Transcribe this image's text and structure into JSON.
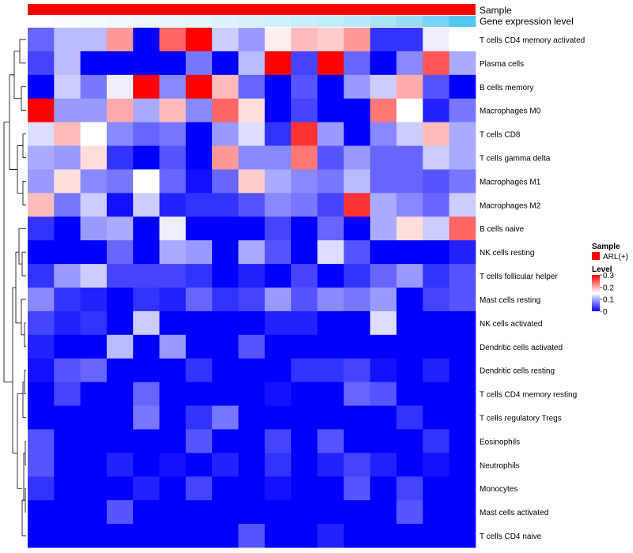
{
  "chart_data": {
    "type": "heatmap",
    "title": "",
    "annotation_tracks": [
      {
        "name": "Sample",
        "values_label": "ARL(+)",
        "color": "#ff0000"
      },
      {
        "name": "Gene expression level",
        "gradient": [
          "#ffffff",
          "#55c8f0"
        ]
      }
    ],
    "rows": [
      "T cells CD4 memory activated",
      "Plasma cells",
      "B cells memory",
      "Macrophages M0",
      "T cells CD8",
      "T cells gamma delta",
      "Macrophages M1",
      "Macrophages M2",
      "B cells naive",
      "NK cells resting",
      "T cells follicular helper",
      "Mast cells resting",
      "NK cells activated",
      "Dendritic cells activated",
      "Dendritic cells resting",
      "T cells CD4 memory resting",
      "T cells regulatory  Tregs",
      "Eosinophils",
      "Neutrophils",
      "Monocytes",
      "Mast cells activated",
      "T cells CD4 naive"
    ],
    "n_columns": 17,
    "values": [
      [
        0.06,
        0.11,
        0.11,
        0.21,
        0.0,
        0.24,
        0.31,
        0.12,
        0.09,
        0.16,
        0.19,
        0.18,
        0.21,
        0.03,
        0.03,
        0.14,
        0.15
      ],
      [
        0.04,
        0.11,
        0.0,
        0.0,
        0.0,
        0.0,
        0.07,
        0.0,
        0.11,
        0.31,
        0.04,
        0.31,
        0.06,
        0.0,
        0.08,
        0.25,
        0.1
      ],
      [
        0.0,
        0.12,
        0.07,
        0.14,
        0.31,
        0.08,
        0.31,
        0.19,
        0.06,
        0.0,
        0.05,
        0.0,
        0.09,
        0.12,
        0.2,
        0.05,
        0.0
      ],
      [
        0.3,
        0.09,
        0.09,
        0.2,
        0.1,
        0.19,
        0.08,
        0.24,
        0.17,
        0.0,
        0.04,
        0.0,
        0.0,
        0.23,
        0.15,
        0.02,
        0.07
      ],
      [
        0.13,
        0.19,
        0.15,
        0.08,
        0.06,
        0.07,
        0.0,
        0.09,
        0.13,
        0.03,
        0.27,
        0.09,
        0.0,
        0.08,
        0.12,
        0.19,
        0.1
      ],
      [
        0.1,
        0.09,
        0.17,
        0.03,
        0.0,
        0.05,
        0.0,
        0.21,
        0.08,
        0.08,
        0.23,
        0.05,
        0.09,
        0.06,
        0.06,
        0.12,
        0.1
      ],
      [
        0.09,
        0.17,
        0.08,
        0.07,
        0.15,
        0.06,
        0.01,
        0.06,
        0.18,
        0.1,
        0.08,
        0.07,
        0.11,
        0.06,
        0.06,
        0.05,
        0.07
      ],
      [
        0.19,
        0.07,
        0.12,
        0.01,
        0.12,
        0.02,
        0.03,
        0.03,
        0.05,
        0.08,
        0.07,
        0.04,
        0.27,
        0.1,
        0.08,
        0.06,
        0.12
      ],
      [
        0.03,
        0.0,
        0.09,
        0.1,
        0.0,
        0.14,
        0.0,
        0.0,
        0.0,
        0.04,
        0.0,
        0.06,
        0.0,
        0.1,
        0.17,
        0.12,
        0.24
      ],
      [
        0.0,
        0.0,
        0.0,
        0.06,
        0.0,
        0.1,
        0.09,
        0.0,
        0.1,
        0.05,
        0.0,
        0.13,
        0.05,
        0.0,
        0.0,
        0.0,
        0.02
      ],
      [
        0.03,
        0.09,
        0.12,
        0.04,
        0.04,
        0.04,
        0.03,
        0.0,
        0.02,
        0.0,
        0.04,
        0.0,
        0.03,
        0.06,
        0.09,
        0.03,
        0.05
      ],
      [
        0.08,
        0.03,
        0.02,
        0.0,
        0.03,
        0.02,
        0.06,
        0.03,
        0.04,
        0.09,
        0.05,
        0.08,
        0.07,
        0.09,
        0.0,
        0.04,
        0.05
      ],
      [
        0.04,
        0.02,
        0.03,
        0.0,
        0.12,
        0.0,
        0.0,
        0.0,
        0.0,
        0.02,
        0.02,
        0.0,
        0.0,
        0.13,
        0.0,
        0.0,
        0.0
      ],
      [
        0.02,
        0.0,
        0.0,
        0.11,
        0.0,
        0.09,
        0.0,
        0.0,
        0.05,
        0.0,
        0.0,
        0.0,
        0.0,
        0.0,
        0.0,
        0.0,
        0.0
      ],
      [
        0.01,
        0.05,
        0.06,
        0.0,
        0.0,
        0.0,
        0.03,
        0.0,
        0.0,
        0.0,
        0.03,
        0.03,
        0.04,
        0.01,
        0.0,
        0.02,
        0.0
      ],
      [
        0.0,
        0.04,
        0.0,
        0.0,
        0.06,
        0.0,
        0.0,
        0.0,
        0.0,
        0.01,
        0.0,
        0.0,
        0.06,
        0.05,
        0.0,
        0.0,
        0.0
      ],
      [
        0.0,
        0.0,
        0.0,
        0.0,
        0.07,
        0.0,
        0.03,
        0.07,
        0.0,
        0.0,
        0.0,
        0.0,
        0.0,
        0.0,
        0.03,
        0.0,
        0.0
      ],
      [
        0.05,
        0.0,
        0.0,
        0.0,
        0.0,
        0.0,
        0.05,
        0.0,
        0.0,
        0.04,
        0.0,
        0.05,
        0.0,
        0.0,
        0.0,
        0.03,
        0.0
      ],
      [
        0.05,
        0.0,
        0.0,
        0.02,
        0.0,
        0.01,
        0.0,
        0.02,
        0.0,
        0.03,
        0.0,
        0.02,
        0.04,
        0.02,
        0.0,
        0.01,
        0.0
      ],
      [
        0.03,
        0.0,
        0.0,
        0.0,
        0.02,
        0.0,
        0.04,
        0.0,
        0.0,
        0.01,
        0.0,
        0.0,
        0.05,
        0.0,
        0.04,
        0.0,
        0.0
      ],
      [
        0.0,
        0.0,
        0.0,
        0.05,
        0.0,
        0.0,
        0.0,
        0.0,
        0.0,
        0.0,
        0.0,
        0.0,
        0.0,
        0.0,
        0.05,
        0.0,
        0.0
      ],
      [
        0.0,
        0.0,
        0.0,
        0.0,
        0.0,
        0.0,
        0.0,
        0.0,
        0.05,
        0.0,
        0.0,
        0.02,
        0.0,
        0.0,
        0.0,
        0.0,
        0.0
      ]
    ],
    "expression_level_values": [
      0.0,
      0.03,
      0.06,
      0.09,
      0.12,
      0.15,
      0.18,
      0.22,
      0.25,
      0.29,
      0.33,
      0.37,
      0.42,
      0.5,
      0.62,
      0.8,
      1.0
    ],
    "color_scale": {
      "min": 0,
      "max": 0.3,
      "low": "#0000ff",
      "mid": "#ffffff",
      "high": "#ff0000"
    },
    "legend": {
      "sample_title": "Sample",
      "sample_entry": "ARL(+)",
      "level_title": "Level",
      "level_ticks": [
        "0.3",
        "0.2",
        "0.1",
        "0"
      ]
    },
    "labels": {
      "sample_track": "Sample",
      "expression_track": "Gene expression level"
    },
    "dendrogram": "rows clustered (left)"
  }
}
